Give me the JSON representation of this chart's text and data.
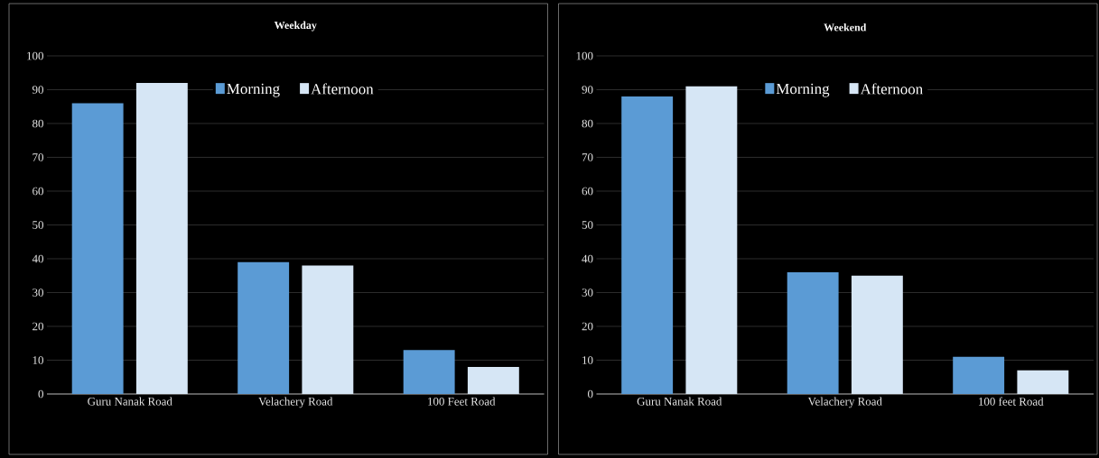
{
  "chart_data": [
    {
      "type": "bar",
      "title": "Weekday",
      "categories": [
        "Guru Nanak Road",
        "Velachery Road",
        "100 Feet Road"
      ],
      "series": [
        {
          "name": "Morning",
          "color": "#5b9bd5",
          "values": [
            86,
            39,
            13
          ]
        },
        {
          "name": "Afternoon",
          "color": "#d6e6f5",
          "values": [
            92,
            38,
            8
          ]
        }
      ],
      "ylim": [
        0,
        100
      ],
      "yticks": [
        0,
        10,
        20,
        30,
        40,
        50,
        60,
        70,
        80,
        90,
        100
      ],
      "grid": "y",
      "legend": "top"
    },
    {
      "type": "bar",
      "title": "Weekend",
      "categories": [
        "Guru Nanak Road",
        "Velachery Road",
        "100 feet Road"
      ],
      "series": [
        {
          "name": "Morning",
          "color": "#5b9bd5",
          "values": [
            88,
            36,
            11
          ]
        },
        {
          "name": "Afternoon",
          "color": "#d6e6f5",
          "values": [
            91,
            35,
            7
          ]
        }
      ],
      "ylim": [
        0,
        100
      ],
      "yticks": [
        0,
        10,
        20,
        30,
        40,
        50,
        60,
        70,
        80,
        90,
        100
      ],
      "grid": "y",
      "legend": "top"
    }
  ]
}
